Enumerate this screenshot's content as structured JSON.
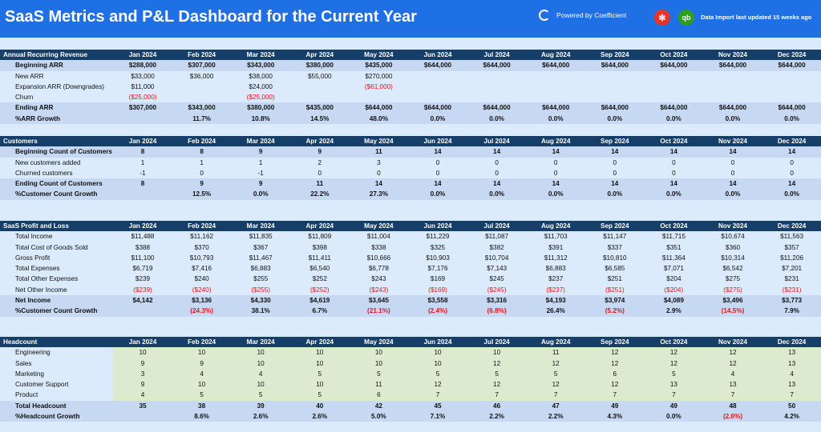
{
  "header": {
    "title": "SaaS Metrics and P&L Dashboard for the Current Year",
    "powered": "Powered by Coefficient",
    "import_status": "Data Import last updated 15 weeks ago"
  },
  "months": [
    "Jan 2024",
    "Feb 2024",
    "Mar 2024",
    "Apr 2024",
    "May 2024",
    "Jun 2024",
    "Jul 2024",
    "Aug 2024",
    "Sep 2024",
    "Oct 2024",
    "Nov 2024",
    "Dec 2024"
  ],
  "sections": [
    {
      "title": "Annual Recurring Revenue",
      "rows": [
        {
          "label": "Beginning ARR",
          "style": "band-bold",
          "values": [
            "$288,000",
            "$307,000",
            "$343,000",
            "$380,000",
            "$435,000",
            "$644,000",
            "$644,000",
            "$644,000",
            "$644,000",
            "$644,000",
            "$644,000",
            "$644,000"
          ]
        },
        {
          "label": "New ARR",
          "style": "indent",
          "values": [
            "$33,000",
            "$36,000",
            "$38,000",
            "$55,000",
            "$270,000",
            "",
            "",
            "",
            "",
            "",
            "",
            ""
          ]
        },
        {
          "label": "Expansion ARR (Downgrades)",
          "style": "indent",
          "values": [
            "$11,000",
            "",
            "$24,000",
            "",
            "($61,000)",
            "",
            "",
            "",
            "",
            "",
            "",
            ""
          ]
        },
        {
          "label": "Churn",
          "style": "indent",
          "values": [
            "($25,000)",
            "",
            "($25,000)",
            "",
            "",
            "",
            "",
            "",
            "",
            "",
            "",
            ""
          ]
        },
        {
          "label": "Ending ARR",
          "style": "band-bold",
          "values": [
            "$307,000",
            "$343,000",
            "$380,000",
            "$435,000",
            "$644,000",
            "$644,000",
            "$644,000",
            "$644,000",
            "$644,000",
            "$644,000",
            "$644,000",
            "$644,000"
          ]
        },
        {
          "label": "%ARR Growth",
          "style": "band-bold",
          "values": [
            "",
            "11.7%",
            "10.8%",
            "14.5%",
            "48.0%",
            "0.0%",
            "0.0%",
            "0.0%",
            "0.0%",
            "0.0%",
            "0.0%",
            "0.0%"
          ]
        }
      ]
    },
    {
      "title": "Customers",
      "rows": [
        {
          "label": "Beginning Count of Customers",
          "style": "band-bold",
          "values": [
            "8",
            "8",
            "9",
            "9",
            "11",
            "14",
            "14",
            "14",
            "14",
            "14",
            "14",
            "14"
          ]
        },
        {
          "label": "New customers added",
          "style": "indent",
          "values": [
            "1",
            "1",
            "1",
            "2",
            "3",
            "0",
            "0",
            "0",
            "0",
            "0",
            "0",
            "0"
          ]
        },
        {
          "label": "Churned customers",
          "style": "indent",
          "values": [
            "-1",
            "0",
            "-1",
            "0",
            "0",
            "0",
            "0",
            "0",
            "0",
            "0",
            "0",
            "0"
          ]
        },
        {
          "label": "Ending Count of Customers",
          "style": "band-bold",
          "values": [
            "8",
            "9",
            "9",
            "11",
            "14",
            "14",
            "14",
            "14",
            "14",
            "14",
            "14",
            "14"
          ]
        },
        {
          "label": "%Customer Count Growth",
          "style": "band-bold",
          "values": [
            "",
            "12.5%",
            "0.0%",
            "22.2%",
            "27.3%",
            "0.0%",
            "0.0%",
            "0.0%",
            "0.0%",
            "0.0%",
            "0.0%",
            "0.0%"
          ]
        }
      ]
    },
    {
      "title": "SaaS Profit and Loss",
      "rows": [
        {
          "label": "Total Income",
          "style": "indent",
          "values": [
            "$11,488",
            "$11,162",
            "$11,835",
            "$11,809",
            "$11,004",
            "$11,229",
            "$11,087",
            "$11,703",
            "$11,147",
            "$11,715",
            "$10,674",
            "$11,563"
          ]
        },
        {
          "label": "Total Cost of Goods Sold",
          "style": "indent",
          "values": [
            "$388",
            "$370",
            "$367",
            "$398",
            "$338",
            "$325",
            "$382",
            "$391",
            "$337",
            "$351",
            "$360",
            "$357"
          ]
        },
        {
          "label": "Gross Profit",
          "style": "indent",
          "values": [
            "$11,100",
            "$10,793",
            "$11,467",
            "$11,411",
            "$10,666",
            "$10,903",
            "$10,704",
            "$11,312",
            "$10,810",
            "$11,364",
            "$10,314",
            "$11,206"
          ]
        },
        {
          "label": "Total Expenses",
          "style": "indent",
          "values": [
            "$6,719",
            "$7,416",
            "$6,883",
            "$6,540",
            "$6,778",
            "$7,176",
            "$7,143",
            "$6,883",
            "$6,585",
            "$7,071",
            "$6,542",
            "$7,201"
          ]
        },
        {
          "label": "Total Other Expenses",
          "style": "indent",
          "values": [
            "$239",
            "$240",
            "$255",
            "$252",
            "$243",
            "$169",
            "$245",
            "$237",
            "$251",
            "$204",
            "$275",
            "$231"
          ]
        },
        {
          "label": "Net Other Income",
          "style": "indent",
          "values": [
            "($239)",
            "($240)",
            "($255)",
            "($252)",
            "($243)",
            "($169)",
            "($245)",
            "($237)",
            "($251)",
            "($204)",
            "($275)",
            "($231)"
          ]
        },
        {
          "label": "Net Income",
          "style": "band-bold",
          "values": [
            "$4,142",
            "$3,136",
            "$4,330",
            "$4,619",
            "$3,645",
            "$3,558",
            "$3,316",
            "$4,193",
            "$3,974",
            "$4,089",
            "$3,496",
            "$3,773"
          ]
        },
        {
          "label": "%Customer Count Growth",
          "style": "band-bold",
          "values": [
            "",
            "(24.3%)",
            "38.1%",
            "6.7%",
            "(21.1%)",
            "(2.4%)",
            "(6.8%)",
            "26.4%",
            "(5.2%)",
            "2.9%",
            "(14.5%)",
            "7.9%"
          ]
        }
      ]
    },
    {
      "title": "Headcount",
      "rows": [
        {
          "label": "Engineering",
          "style": "indent",
          "values": [
            "10",
            "10",
            "10",
            "10",
            "10",
            "10",
            "10",
            "11",
            "12",
            "12",
            "12",
            "13"
          ]
        },
        {
          "label": "Sales",
          "style": "indent",
          "values": [
            "9",
            "9",
            "10",
            "10",
            "10",
            "10",
            "12",
            "12",
            "12",
            "12",
            "12",
            "13"
          ]
        },
        {
          "label": "Marketing",
          "style": "indent",
          "values": [
            "3",
            "4",
            "4",
            "5",
            "5",
            "5",
            "5",
            "5",
            "6",
            "5",
            "4",
            "4"
          ]
        },
        {
          "label": "Customer Support",
          "style": "indent",
          "values": [
            "9",
            "10",
            "10",
            "10",
            "11",
            "12",
            "12",
            "12",
            "12",
            "13",
            "13",
            "13"
          ]
        },
        {
          "label": "Product",
          "style": "indent",
          "values": [
            "4",
            "5",
            "5",
            "5",
            "6",
            "7",
            "7",
            "7",
            "7",
            "7",
            "7",
            "7"
          ]
        },
        {
          "label": "Total Headcount",
          "style": "band-bold",
          "values": [
            "35",
            "38",
            "39",
            "40",
            "42",
            "45",
            "46",
            "47",
            "49",
            "49",
            "48",
            "50"
          ]
        },
        {
          "label": "%Headcount Growth",
          "style": "band-bold",
          "values": [
            "",
            "8.6%",
            "2.6%",
            "2.6%",
            "5.0%",
            "7.1%",
            "2.2%",
            "2.2%",
            "4.3%",
            "0.0%",
            "(2.0%)",
            "4.2%"
          ]
        }
      ]
    }
  ]
}
